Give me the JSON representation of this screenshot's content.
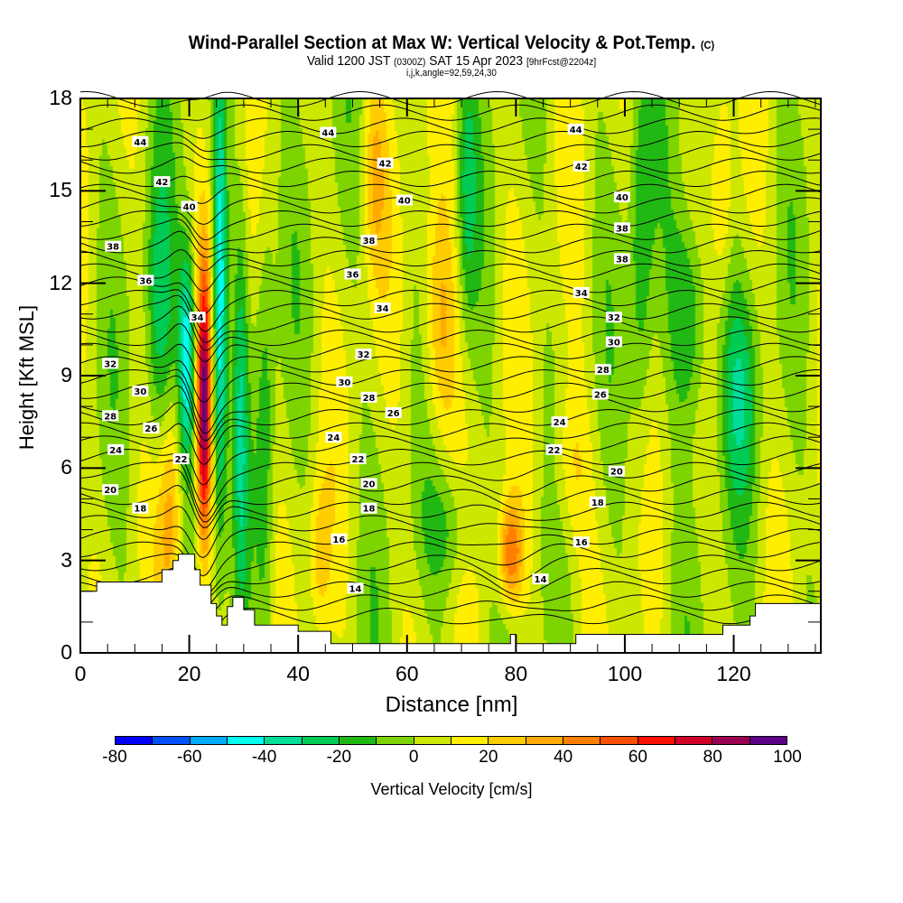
{
  "header": {
    "title": "Wind-Parallel Section at Max W: Vertical Velocity & Pot.Temp.",
    "title_suffix": "(C)",
    "valid_prefix": "Valid 1200 JST",
    "valid_utc": "(0300Z)",
    "valid_date": "SAT 15 Apr 2023",
    "forecast": "[9hrFcst@2204z]",
    "grid_info": "i,j,k,angle=92,59,24,30"
  },
  "chart_data": {
    "type": "heatmap",
    "title": "Wind-Parallel Section at Max W: Vertical Velocity & Pot.Temp.",
    "xlabel": "Distance [nm]",
    "ylabel": "Height [Kft MSL]",
    "xlim": [
      0,
      136
    ],
    "ylim": [
      0,
      18
    ],
    "x_ticks": [
      0,
      20,
      40,
      60,
      80,
      100,
      120
    ],
    "y_ticks": [
      0,
      3,
      6,
      9,
      12,
      15,
      18
    ],
    "grid": false,
    "colorbar": {
      "label": "Vertical Velocity [cm/s]",
      "placement": "bottom",
      "bounds": [
        -80,
        -70,
        -60,
        -50,
        -40,
        -30,
        -20,
        -10,
        0,
        10,
        20,
        30,
        40,
        50,
        60,
        70,
        80,
        90,
        100
      ],
      "tick_labels": [
        "-80",
        "-60",
        "-40",
        "-20",
        "0",
        "20",
        "40",
        "60",
        "80",
        "100"
      ],
      "colors": [
        "#0000ff",
        "#0050ff",
        "#00aaff",
        "#00ffee",
        "#00dd99",
        "#00cc55",
        "#22b814",
        "#7dd400",
        "#cde800",
        "#ffee00",
        "#ffcc00",
        "#ffaa00",
        "#ff8000",
        "#ff5000",
        "#ff1000",
        "#d00028",
        "#9b0050",
        "#5a0088"
      ]
    },
    "filled_field": {
      "variable": "Vertical Velocity [cm/s]",
      "features": [
        {
          "name": "strong updraft core",
          "x": 22.5,
          "height_range": [
            4.5,
            11
          ],
          "peak": 75
        },
        {
          "name": "downdraft band",
          "x": 19.5,
          "height_range": [
            6,
            12
          ],
          "peak": -45
        },
        {
          "name": "downdraft band 2",
          "x": 25.5,
          "height_range": [
            7,
            17.5
          ],
          "peak": -45
        },
        {
          "name": "updraft near 79nm",
          "x": 79,
          "height_range": [
            2,
            5
          ],
          "peak": 45
        },
        {
          "name": "updraft band 66nm",
          "x": 66,
          "height_range": [
            8,
            13
          ],
          "peak": 35
        },
        {
          "name": "downdraft area 100-130nm",
          "x": 112,
          "height_range": [
            7,
            13
          ],
          "peak": -30
        }
      ]
    },
    "contours": {
      "variable": "Potential Temperature",
      "levels": [
        14,
        16,
        18,
        20,
        22,
        24,
        26,
        28,
        30,
        32,
        34,
        36,
        38,
        40,
        42,
        44
      ],
      "labels": [
        {
          "text": "44",
          "x": 11,
          "y": 16.6
        },
        {
          "text": "42",
          "x": 15,
          "y": 15.3
        },
        {
          "text": "40",
          "x": 20,
          "y": 14.5
        },
        {
          "text": "38",
          "x": 6,
          "y": 13.2
        },
        {
          "text": "36",
          "x": 12,
          "y": 12.1
        },
        {
          "text": "34",
          "x": 21.5,
          "y": 10.9
        },
        {
          "text": "32",
          "x": 5.5,
          "y": 9.4
        },
        {
          "text": "30",
          "x": 11,
          "y": 8.5
        },
        {
          "text": "28",
          "x": 5.5,
          "y": 7.7
        },
        {
          "text": "26",
          "x": 13,
          "y": 7.3
        },
        {
          "text": "24",
          "x": 6.5,
          "y": 6.6
        },
        {
          "text": "22",
          "x": 18.5,
          "y": 6.3
        },
        {
          "text": "20",
          "x": 5.5,
          "y": 5.3
        },
        {
          "text": "18",
          "x": 11,
          "y": 4.7
        },
        {
          "text": "44",
          "x": 45.5,
          "y": 16.9
        },
        {
          "text": "42",
          "x": 56,
          "y": 15.9
        },
        {
          "text": "40",
          "x": 59.5,
          "y": 14.7
        },
        {
          "text": "38",
          "x": 53,
          "y": 13.4
        },
        {
          "text": "36",
          "x": 50,
          "y": 12.3
        },
        {
          "text": "34",
          "x": 55.5,
          "y": 11.2
        },
        {
          "text": "32",
          "x": 52,
          "y": 9.7
        },
        {
          "text": "30",
          "x": 48.5,
          "y": 8.8
        },
        {
          "text": "28",
          "x": 53,
          "y": 8.3
        },
        {
          "text": "26",
          "x": 57.5,
          "y": 7.8
        },
        {
          "text": "24",
          "x": 46.5,
          "y": 7.0
        },
        {
          "text": "22",
          "x": 51,
          "y": 6.3
        },
        {
          "text": "20",
          "x": 53,
          "y": 5.5
        },
        {
          "text": "18",
          "x": 53,
          "y": 4.7
        },
        {
          "text": "16",
          "x": 47.5,
          "y": 3.7
        },
        {
          "text": "14",
          "x": 50.5,
          "y": 2.1
        },
        {
          "text": "44",
          "x": 91,
          "y": 17.0
        },
        {
          "text": "42",
          "x": 92,
          "y": 15.8
        },
        {
          "text": "40",
          "x": 99.5,
          "y": 14.8
        },
        {
          "text": "38",
          "x": 99.5,
          "y": 13.8
        },
        {
          "text": "38",
          "x": 99.5,
          "y": 12.8
        },
        {
          "text": "34",
          "x": 92,
          "y": 11.7
        },
        {
          "text": "32",
          "x": 98,
          "y": 10.9
        },
        {
          "text": "30",
          "x": 98,
          "y": 10.1
        },
        {
          "text": "28",
          "x": 96,
          "y": 9.2
        },
        {
          "text": "26",
          "x": 95.5,
          "y": 8.4
        },
        {
          "text": "24",
          "x": 88,
          "y": 7.5
        },
        {
          "text": "22",
          "x": 87,
          "y": 6.6
        },
        {
          "text": "20",
          "x": 98.5,
          "y": 5.9
        },
        {
          "text": "18",
          "x": 95,
          "y": 4.9
        },
        {
          "text": "16",
          "x": 92,
          "y": 3.6
        },
        {
          "text": "14",
          "x": 84.5,
          "y": 2.4
        }
      ]
    },
    "terrain_mask_kft": [
      [
        0,
        2.0
      ],
      [
        3,
        2.0
      ],
      [
        3,
        2.3
      ],
      [
        15,
        2.3
      ],
      [
        15,
        2.7
      ],
      [
        17,
        2.7
      ],
      [
        17,
        3.0
      ],
      [
        18,
        3.0
      ],
      [
        18,
        3.2
      ],
      [
        21,
        3.2
      ],
      [
        21,
        2.7
      ],
      [
        22,
        2.7
      ],
      [
        22,
        2.2
      ],
      [
        24,
        2.2
      ],
      [
        24,
        1.6
      ],
      [
        25,
        1.6
      ],
      [
        25,
        1.2
      ],
      [
        26,
        1.2
      ],
      [
        26,
        0.9
      ],
      [
        27,
        0.9
      ],
      [
        27,
        1.5
      ],
      [
        28,
        1.5
      ],
      [
        28,
        1.8
      ],
      [
        30,
        1.8
      ],
      [
        30,
        1.4
      ],
      [
        32,
        1.4
      ],
      [
        32,
        0.9
      ],
      [
        40,
        0.9
      ],
      [
        40,
        0.7
      ],
      [
        46,
        0.7
      ],
      [
        46,
        0.3
      ],
      [
        79,
        0.3
      ],
      [
        79,
        0.6
      ],
      [
        80,
        0.6
      ],
      [
        80,
        0.3
      ],
      [
        91,
        0.3
      ],
      [
        91,
        0.6
      ],
      [
        118,
        0.6
      ],
      [
        118,
        0.9
      ],
      [
        123,
        0.9
      ],
      [
        123,
        1.2
      ],
      [
        124,
        1.2
      ],
      [
        124,
        1.6
      ],
      [
        136,
        1.6
      ]
    ]
  }
}
